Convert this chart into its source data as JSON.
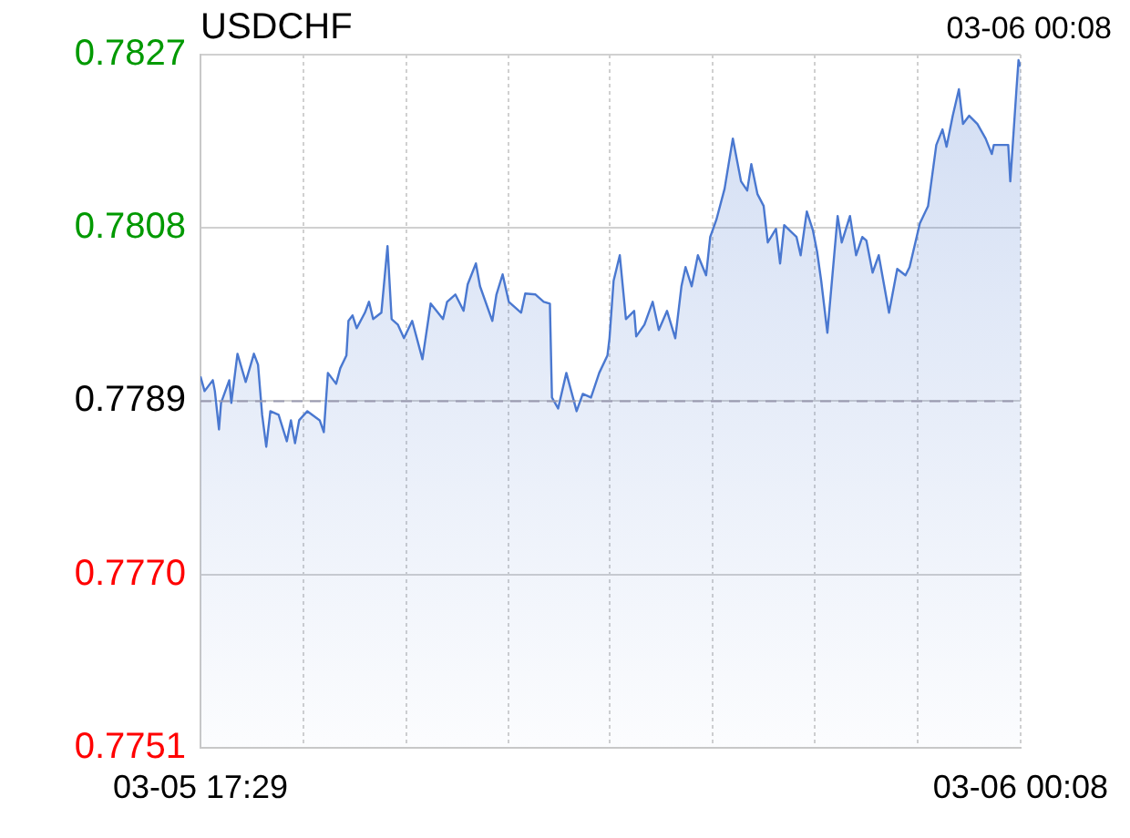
{
  "chart_data": {
    "type": "area",
    "title": "USDCHF",
    "annotations": [
      "03-06 00:08"
    ],
    "x": [
      "--03-05T17:29",
      "--03-05T17:31",
      "--03-05T17:35",
      "--03-05T17:36",
      "--03-05T17:38",
      "--03-05T17:39",
      "--03-05T17:43",
      "--03-05T17:44",
      "--03-05T17:47",
      "--03-05T17:51",
      "--03-05T17:55",
      "--03-05T17:57",
      "--03-05T17:59",
      "--03-05T18:01",
      "--03-05T18:03",
      "--03-05T18:07",
      "--03-05T18:11",
      "--03-05T18:13",
      "--03-05T18:15",
      "--03-05T18:17",
      "--03-05T18:21",
      "--03-05T18:27",
      "--03-05T18:29",
      "--03-05T18:31",
      "--03-05T18:35",
      "--03-05T18:37",
      "--03-05T18:40",
      "--03-05T18:41",
      "--03-05T18:43",
      "--03-05T18:45",
      "--03-05T18:49",
      "--03-05T18:51",
      "--03-05T18:53",
      "--03-05T18:57",
      "--03-05T19:00",
      "--03-05T19:02",
      "--03-05T19:05",
      "--03-05T19:08",
      "--03-05T19:12",
      "--03-05T19:17",
      "--03-05T19:21",
      "--03-05T19:27",
      "--03-05T19:29",
      "--03-05T19:33",
      "--03-05T19:37",
      "--03-05T19:39",
      "--03-05T19:43",
      "--03-05T19:45",
      "--03-05T19:51",
      "--03-05T19:53",
      "--03-05T19:56",
      "--03-05T19:59",
      "--03-05T20:05",
      "--03-05T20:07",
      "--03-05T20:12",
      "--03-05T20:16",
      "--03-05T20:19",
      "--03-05T20:20",
      "--03-05T20:23",
      "--03-05T20:27",
      "--03-05T20:32",
      "--03-05T20:35",
      "--03-05T20:39",
      "--03-05T20:43",
      "--03-05T20:47",
      "--03-05T20:48",
      "--03-05T20:50",
      "--03-05T20:53",
      "--03-05T20:56",
      "--03-05T21:00",
      "--03-05T21:01",
      "--03-05T21:05",
      "--03-05T21:09",
      "--03-05T21:12",
      "--03-05T21:16",
      "--03-05T21:20",
      "--03-05T21:23",
      "--03-05T21:25",
      "--03-05T21:28",
      "--03-05T21:31",
      "--03-05T21:35",
      "--03-05T21:37",
      "--03-05T21:40",
      "--03-05T21:44",
      "--03-05T21:48",
      "--03-05T21:52",
      "--03-05T21:55",
      "--03-05T21:57",
      "--03-05T22:00",
      "--03-05T22:03",
      "--03-05T22:05",
      "--03-05T22:09",
      "--03-05T22:11",
      "--03-05T22:13",
      "--03-05T22:19",
      "--03-05T22:21",
      "--03-05T22:24",
      "--03-05T22:27",
      "--03-05T22:29",
      "--03-05T22:31",
      "--03-05T22:34",
      "--03-05T22:39",
      "--03-05T22:41",
      "--03-05T22:45",
      "--03-05T22:48",
      "--03-05T22:51",
      "--03-05T22:53",
      "--03-05T22:56",
      "--03-05T22:59",
      "--03-05T23:04",
      "--03-05T23:08",
      "--03-05T23:12",
      "--03-05T23:14",
      "--03-05T23:19",
      "--03-05T23:23",
      "--03-05T23:27",
      "--03-05T23:30",
      "--03-05T23:32",
      "--03-05T23:35",
      "--03-05T23:38",
      "--03-05T23:40",
      "--03-05T23:43",
      "--03-05T23:47",
      "--03-05T23:51",
      "--03-05T23:54",
      "--03-05T23:55",
      "--03-06T00:02",
      "--03-06T00:03",
      "--03-06T00:06",
      "--03-06T00:07",
      "--03-06T00:08"
    ],
    "series": [
      {
        "color": "#4a78d0",
        "values": [
          0.77917,
          0.77901,
          0.77913,
          0.77901,
          0.77859,
          0.77888,
          0.77913,
          0.77888,
          0.77942,
          0.77911,
          0.77942,
          0.7793,
          0.77875,
          0.7784,
          0.77879,
          0.77875,
          0.77846,
          0.77869,
          0.77844,
          0.77869,
          0.77879,
          0.77869,
          0.77856,
          0.77921,
          0.77909,
          0.77926,
          0.7794,
          0.77978,
          0.77984,
          0.7797,
          0.77987,
          0.77999,
          0.7798,
          0.77987,
          0.7806,
          0.7798,
          0.77974,
          0.77959,
          0.77978,
          0.77936,
          0.77997,
          0.7798,
          0.77999,
          0.78007,
          0.77989,
          0.78018,
          0.78041,
          0.78016,
          0.77978,
          0.78007,
          0.78029,
          0.77999,
          0.77987,
          0.78008,
          0.78007,
          0.77999,
          0.77997,
          0.77894,
          0.77882,
          0.77921,
          0.77879,
          0.77898,
          0.77894,
          0.77921,
          0.7794,
          0.77959,
          0.78022,
          0.7805,
          0.7798,
          0.77989,
          0.77961,
          0.77974,
          0.77999,
          0.77968,
          0.77989,
          0.77959,
          0.78016,
          0.78037,
          0.78016,
          0.7805,
          0.78028,
          0.7807,
          0.78089,
          0.78123,
          0.78178,
          0.78131,
          0.78121,
          0.7815,
          0.78117,
          0.78104,
          0.78064,
          0.78079,
          0.78041,
          0.78083,
          0.7807,
          0.7805,
          0.78098,
          0.78077,
          0.78054,
          0.78022,
          0.77965,
          0.78093,
          0.78064,
          0.78093,
          0.7805,
          0.7807,
          0.78066,
          0.78031,
          0.7805,
          0.77987,
          0.78035,
          0.78028,
          0.78037,
          0.78085,
          0.78104,
          0.78171,
          0.78188,
          0.78169,
          0.78203,
          0.78232,
          0.78194,
          0.78203,
          0.78194,
          0.78178,
          0.78161,
          0.78171,
          0.78171,
          0.78131,
          0.78232,
          0.78264,
          0.78257
        ]
      }
    ],
    "xlim": [
      "--03-05T17:29",
      "--03-06T00:08"
    ],
    "xticks": [
      {
        "value": "--03-05T17:29",
        "label": "03-05 17:29"
      },
      {
        "value": "--03-05T18:19",
        "label": null
      },
      {
        "value": "--03-05T19:09",
        "label": null
      },
      {
        "value": "--03-05T19:59",
        "label": null
      },
      {
        "value": "--03-05T20:48",
        "label": null
      },
      {
        "value": "--03-05T21:38",
        "label": null
      },
      {
        "value": "--03-05T22:28",
        "label": null
      },
      {
        "value": "--03-05T23:18",
        "label": null
      },
      {
        "value": "--03-06T00:08",
        "label": "03-06 00:08"
      }
    ],
    "ylim": [
      0.7751,
      0.7827
    ],
    "yticks": [
      0.7751,
      {
        "value": 0.777,
        "label": "0.7770"
      },
      0.7789,
      0.7808,
      0.7827
    ],
    "ref_lines": [
      {
        "axis": "y",
        "value": 0.7789,
        "color": "#9a9ab0",
        "line_style": "dashed"
      }
    ],
    "grid": true,
    "legend": false,
    "marker": "none",
    "line_style": "solid"
  }
}
